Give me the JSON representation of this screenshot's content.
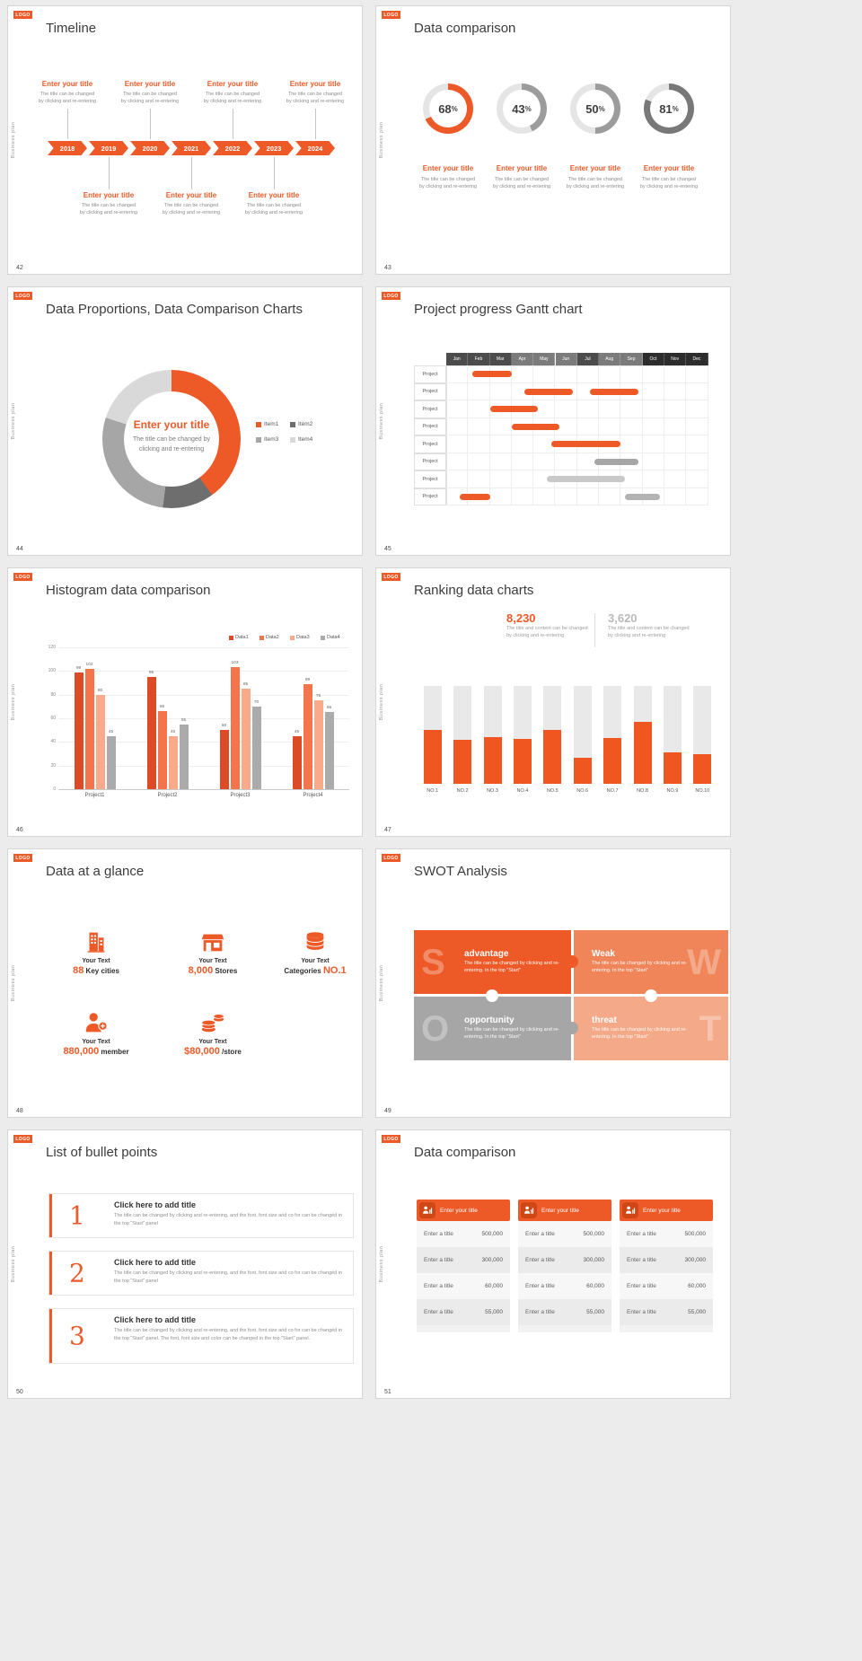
{
  "chrome": {
    "logo": "LOGO",
    "side_label": "Business plan"
  },
  "slides": {
    "s42": {
      "number": "42",
      "title": "Timeline",
      "years": [
        "2018",
        "2019",
        "2020",
        "2021",
        "2022",
        "2023",
        "2024"
      ],
      "above": [
        0,
        2,
        4,
        6
      ],
      "below": [
        1,
        3,
        5
      ],
      "callout": {
        "title": "Enter your title",
        "line1": "The title can be changed",
        "line2": "by clicking and re-entering"
      },
      "accent": "#ed5a28"
    },
    "s43": {
      "number": "43",
      "title": "Data comparison",
      "rings": [
        {
          "value": "68",
          "pct": 68,
          "color": "#ed5a28"
        },
        {
          "value": "43",
          "pct": 43,
          "color": "#9c9c9c"
        },
        {
          "value": "50",
          "pct": 50,
          "color": "#9c9c9c"
        },
        {
          "value": "81",
          "pct": 81,
          "color": "#787878"
        }
      ],
      "track_color": "#e5e5e5",
      "caption": {
        "title": "Enter your title",
        "line1": "The title can be changed",
        "line2": "by clicking and re-entering"
      }
    },
    "s44": {
      "number": "44",
      "title": "Data Proportions, Data Comparison Charts",
      "chart_data": {
        "type": "pie",
        "segments": [
          {
            "name": "Item1",
            "value": 40,
            "color": "#ed5a28"
          },
          {
            "name": "Item2",
            "value": 12,
            "color": "#6e6e6e"
          },
          {
            "name": "Item3",
            "value": 28,
            "color": "#a6a6a6"
          },
          {
            "name": "Item4",
            "value": 20,
            "color": "#d9d9d9"
          }
        ]
      },
      "center_title": "Enter your title",
      "center_line1": "The title can be changed by",
      "center_line2": "clicking and re-entering"
    },
    "s45": {
      "number": "45",
      "title": "Project progress Gantt chart",
      "months": [
        "Jan",
        "Feb",
        "Mar",
        "Apr",
        "May",
        "Jun",
        "Jul",
        "Aug",
        "Sep",
        "Oct",
        "Nov",
        "Dec"
      ],
      "month_shades": [
        "#4c4c4c",
        "#4c4c4c",
        "#4c4c4c",
        "#7b7b7b",
        "#7b7b7b",
        "#7b7b7b",
        "#4c4c4c",
        "#7b7b7b",
        "#7b7b7b",
        "#2d2d2d",
        "#2d2d2d",
        "#2d2d2d"
      ],
      "row_label": "Project",
      "rows": [
        {
          "bars": [
            {
              "start": 1.2,
              "end": 3.0,
              "color": "#ed5a28"
            }
          ]
        },
        {
          "bars": [
            {
              "start": 3.6,
              "end": 5.8,
              "color": "#ed5a28"
            },
            {
              "start": 6.6,
              "end": 8.8,
              "color": "#ed5a28"
            }
          ]
        },
        {
          "bars": [
            {
              "start": 2.0,
              "end": 4.2,
              "color": "#ed5a28"
            }
          ]
        },
        {
          "bars": [
            {
              "start": 3.0,
              "end": 5.2,
              "color": "#ed5a28"
            }
          ]
        },
        {
          "bars": [
            {
              "start": 4.8,
              "end": 8.0,
              "color": "#ed5a28"
            }
          ]
        },
        {
          "bars": [
            {
              "start": 6.8,
              "end": 8.8,
              "color": "#a6a6a6"
            }
          ]
        },
        {
          "bars": [
            {
              "start": 4.6,
              "end": 8.2,
              "color": "#c9c9c9"
            }
          ]
        },
        {
          "bars": [
            {
              "start": 0.6,
              "end": 2.0,
              "color": "#ed5a28"
            },
            {
              "start": 8.2,
              "end": 9.8,
              "color": "#b3b3b3"
            }
          ]
        }
      ]
    },
    "s46": {
      "number": "46",
      "title": "Histogram data comparison",
      "chart_data": {
        "type": "bar",
        "categories": [
          "Project1",
          "Project2",
          "Project3",
          "Project4"
        ],
        "series": [
          {
            "name": "Data1",
            "color": "#dd4b26",
            "values": [
              99,
              95,
              50,
              45
            ]
          },
          {
            "name": "Data2",
            "color": "#f4754c",
            "values": [
              102,
              66,
              103,
              89
            ]
          },
          {
            "name": "Data3",
            "color": "#f8aa8a",
            "values": [
              80,
              45,
              85,
              75
            ]
          },
          {
            "name": "Data4",
            "color": "#ababab",
            "values": [
              45,
              55,
              70,
              65
            ]
          }
        ],
        "ylim": [
          0,
          120
        ],
        "yticks": [
          0,
          20,
          40,
          60,
          80,
          100,
          120
        ]
      }
    },
    "s47": {
      "number": "47",
      "title": "Ranking data charts",
      "stat1": {
        "value": "8,230",
        "line1": "The title and content can be changed",
        "line2": "by clicking and re-entering",
        "color": "#ed5a28"
      },
      "stat2": {
        "value": "3,620",
        "line1": "The title and content can be changed",
        "line2": "by clicking and re-entering",
        "color": "#b9b9b9"
      },
      "chart_data": {
        "type": "bar",
        "categories": [
          "NO.1",
          "NO.2",
          "NO.3",
          "NO.4",
          "NO.5",
          "NO.6",
          "NO.7",
          "NO.8",
          "NO.9",
          "NO.10"
        ],
        "values_pct": [
          55,
          45,
          48,
          46,
          55,
          27,
          47,
          63,
          32,
          30
        ],
        "bar_color": "#f0561f",
        "track_color": "#e9e9e9"
      }
    },
    "s48": {
      "number": "48",
      "title": "Data at a glance",
      "items": [
        {
          "icon": "building-icon",
          "label": "Your Text",
          "num": "88",
          "unit": "Key cities",
          "num_first": true
        },
        {
          "icon": "store-icon",
          "label": "Your Text",
          "num": "8,000",
          "unit": "Stores",
          "num_first": true
        },
        {
          "icon": "categories-icon",
          "label": "Your Text",
          "num": "NO.1",
          "unit": "Categories",
          "num_first": false
        },
        {
          "icon": "member-icon",
          "label": "Your Text",
          "num": "880,000",
          "unit": "member",
          "num_first": true
        },
        {
          "icon": "money-icon",
          "label": "Your Text",
          "num": "$80,000",
          "unit": "/store",
          "num_first": true
        }
      ]
    },
    "s49": {
      "number": "49",
      "title": "SWOT Analysis",
      "pieces": [
        {
          "letter": "S",
          "word": "advantage",
          "desc": "The title can be changed by clicking and re-entering. In the top \"Start\"",
          "color": "#ed5a28",
          "side": "left"
        },
        {
          "letter": "W",
          "word": "Weak",
          "desc": "The title can be changed by clicking and re-entering. In the top \"Start\"",
          "color": "#f0855a",
          "side": "right"
        },
        {
          "letter": "O",
          "word": "opportunity",
          "desc": "The title can be changed by clicking and re-entering. In the top \"Start\"",
          "color": "#a6a6a6",
          "side": "left"
        },
        {
          "letter": "T",
          "word": "threat",
          "desc": "The title can be changed by clicking and re-entering. In the top \"Start\"",
          "color": "#f4a988",
          "side": "right"
        }
      ]
    },
    "s50": {
      "number": "50",
      "title": "List of bullet points",
      "items": [
        {
          "num": "1",
          "title": "Click here to add title",
          "desc": "The title can be changed by clicking and re-entering, and the font, font size and co for can be changed in the top \"Start\" panel"
        },
        {
          "num": "2",
          "title": "Click here to add title",
          "desc": "The title can be changed by clicking and re-entering, and the font, font size and co for can be changed in the top \"Start\" panel"
        },
        {
          "num": "3",
          "title": "Click here to add title",
          "desc": "The title can be changed by clicking and re-entering, and the font, font size and co for can be changed in the top \"Start\" panel. The font, font size and color can be changed in the top \"Start\" panel."
        }
      ]
    },
    "s51": {
      "number": "51",
      "title": "Data comparison",
      "cards": [
        {
          "icon": "person-chart-icon",
          "header": "Enter your title",
          "rows": [
            {
              "label": "Enter a title",
              "value": "500,000"
            },
            {
              "label": "Enter a title",
              "value": "300,000"
            },
            {
              "label": "Enter a title",
              "value": "60,000"
            },
            {
              "label": "Enter a title",
              "value": "55,000"
            }
          ]
        },
        {
          "icon": "person-chart-icon",
          "header": "Enter your title",
          "rows": [
            {
              "label": "Enter a title",
              "value": "500,000"
            },
            {
              "label": "Enter a title",
              "value": "300,000"
            },
            {
              "label": "Enter a title",
              "value": "60,000"
            },
            {
              "label": "Enter a title",
              "value": "55,000"
            }
          ]
        },
        {
          "icon": "person-chart-icon",
          "header": "Enter your title",
          "rows": [
            {
              "label": "Enter a title",
              "value": "500,000"
            },
            {
              "label": "Enter a title",
              "value": "300,000"
            },
            {
              "label": "Enter a title",
              "value": "60,000"
            },
            {
              "label": "Enter a title",
              "value": "55,000"
            }
          ]
        }
      ]
    }
  }
}
